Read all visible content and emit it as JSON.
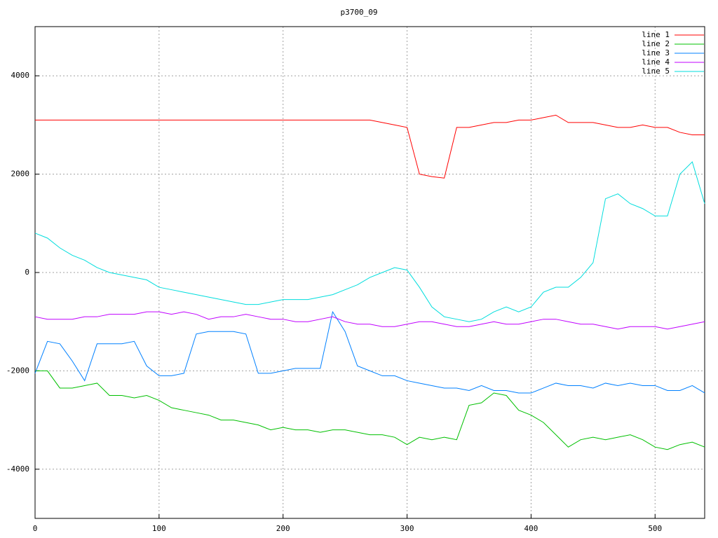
{
  "chart_data": {
    "type": "line",
    "title": "p3700_09",
    "x": [
      0,
      10,
      20,
      30,
      40,
      50,
      60,
      70,
      80,
      90,
      100,
      110,
      120,
      130,
      140,
      150,
      160,
      170,
      180,
      190,
      200,
      210,
      220,
      230,
      240,
      250,
      260,
      270,
      280,
      290,
      300,
      310,
      320,
      330,
      340,
      350,
      360,
      370,
      380,
      390,
      400,
      410,
      420,
      430,
      440,
      450,
      460,
      470,
      480,
      490,
      500,
      510,
      520,
      530,
      540
    ],
    "series": [
      {
        "name": "line 1",
        "color": "#ff0000",
        "values": [
          3100,
          3100,
          3100,
          3100,
          3100,
          3100,
          3100,
          3100,
          3100,
          3100,
          3100,
          3100,
          3100,
          3100,
          3100,
          3100,
          3100,
          3100,
          3100,
          3100,
          3100,
          3100,
          3100,
          3100,
          3100,
          3100,
          3100,
          3100,
          3050,
          3000,
          2950,
          2000,
          1950,
          1920,
          2950,
          2950,
          3000,
          3050,
          3050,
          3100,
          3100,
          3150,
          3200,
          3050,
          3050,
          3050,
          3000,
          2950,
          2950,
          3000,
          2950,
          2950,
          2850,
          2800,
          2800
        ]
      },
      {
        "name": "line 2",
        "color": "#00c000",
        "values": [
          -2000,
          -2000,
          -2350,
          -2350,
          -2300,
          -2250,
          -2500,
          -2500,
          -2550,
          -2500,
          -2600,
          -2750,
          -2800,
          -2850,
          -2900,
          -3000,
          -3000,
          -3050,
          -3100,
          -3200,
          -3150,
          -3200,
          -3200,
          -3250,
          -3200,
          -3200,
          -3250,
          -3300,
          -3300,
          -3350,
          -3500,
          -3350,
          -3400,
          -3350,
          -3400,
          -2700,
          -2650,
          -2450,
          -2500,
          -2800,
          -2900,
          -3050,
          -3300,
          -3550,
          -3400,
          -3350,
          -3400,
          -3350,
          -3300,
          -3400,
          -3550,
          -3600,
          -3500,
          -3450,
          -3550
        ]
      },
      {
        "name": "line 3",
        "color": "#0080ff",
        "values": [
          -2050,
          -1400,
          -1450,
          -1800,
          -2200,
          -1450,
          -1450,
          -1450,
          -1400,
          -1900,
          -2100,
          -2100,
          -2050,
          -1250,
          -1200,
          -1200,
          -1200,
          -1250,
          -2050,
          -2050,
          -2000,
          -1950,
          -1950,
          -1950,
          -800,
          -1200,
          -1900,
          -2000,
          -2100,
          -2100,
          -2200,
          -2250,
          -2300,
          -2350,
          -2350,
          -2400,
          -2300,
          -2400,
          -2400,
          -2450,
          -2450,
          -2350,
          -2250,
          -2300,
          -2300,
          -2350,
          -2250,
          -2300,
          -2250,
          -2300,
          -2300,
          -2400,
          -2400,
          -2300,
          -2450
        ]
      },
      {
        "name": "line 4",
        "color": "#c000ff",
        "values": [
          -900,
          -950,
          -950,
          -950,
          -900,
          -900,
          -850,
          -850,
          -850,
          -800,
          -800,
          -850,
          -800,
          -850,
          -950,
          -900,
          -900,
          -850,
          -900,
          -950,
          -950,
          -1000,
          -1000,
          -950,
          -900,
          -1000,
          -1050,
          -1050,
          -1100,
          -1100,
          -1050,
          -1000,
          -1000,
          -1050,
          -1100,
          -1100,
          -1050,
          -1000,
          -1050,
          -1050,
          -1000,
          -950,
          -950,
          -1000,
          -1050,
          -1050,
          -1100,
          -1150,
          -1100,
          -1100,
          -1100,
          -1150,
          -1100,
          -1050,
          -1000
        ]
      },
      {
        "name": "line 5",
        "color": "#00dddd",
        "values": [
          800,
          700,
          500,
          350,
          250,
          100,
          0,
          -50,
          -100,
          -150,
          -300,
          -350,
          -400,
          -450,
          -500,
          -550,
          -600,
          -650,
          -650,
          -600,
          -550,
          -550,
          -550,
          -500,
          -450,
          -350,
          -250,
          -100,
          0,
          100,
          50,
          -300,
          -700,
          -900,
          -950,
          -1000,
          -950,
          -800,
          -700,
          -800,
          -700,
          -400,
          -300,
          -300,
          -100,
          200,
          1500,
          1600,
          1400,
          1300,
          1150,
          1150,
          2000,
          2250,
          1400
        ]
      }
    ],
    "xlim": [
      0,
      540
    ],
    "xticks": [
      0,
      100,
      200,
      300,
      400,
      500
    ],
    "ylim": [
      -5000,
      5000
    ],
    "yticks": [
      -4000,
      -2000,
      0,
      2000,
      4000
    ],
    "grid": true,
    "legend": "top-right"
  }
}
